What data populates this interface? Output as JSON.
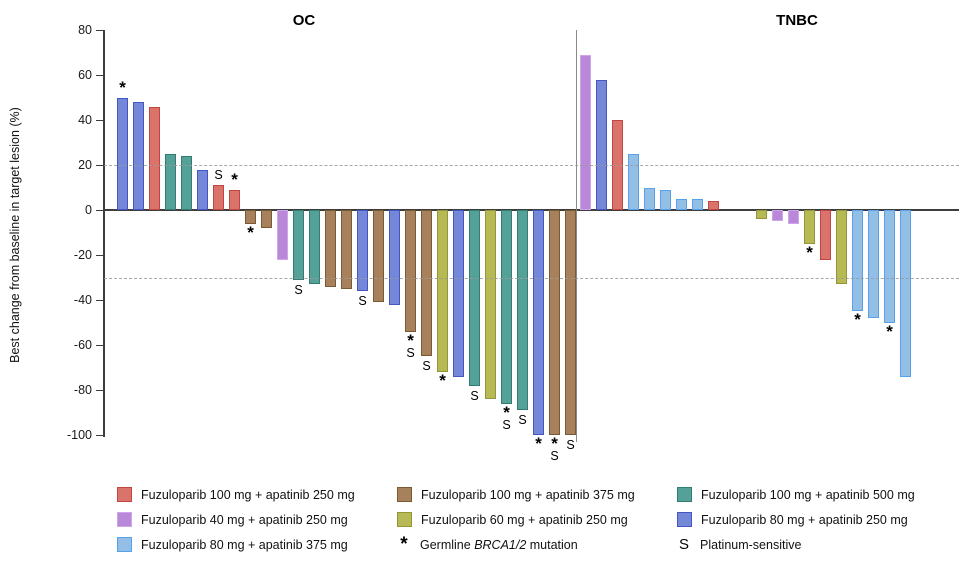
{
  "chart_data": {
    "type": "bar",
    "subtype": "waterfall",
    "ylabel": "Best change from baseline in target lesion (%)",
    "ylim": [
      -100,
      80
    ],
    "yticks": [
      80,
      60,
      40,
      20,
      0,
      -20,
      -40,
      -60,
      -80,
      -100
    ],
    "reference_lines": [
      20,
      -30
    ],
    "legend_position": "bottom",
    "grid": "off",
    "groups": [
      {
        "id": "red",
        "label": "Fuzuloparib 100 mg + apatinib 250 mg",
        "fill": "#D9736B",
        "border": "#C2463E"
      },
      {
        "id": "purple",
        "label": "Fuzuloparib 40 mg + apatinib 250 mg",
        "fill": "#BA88D9",
        "border": "#CFA5EA"
      },
      {
        "id": "lightblue",
        "label": "Fuzuloparib 80 mg + apatinib 375 mg",
        "fill": "#93BFE7",
        "border": "#57A1E9"
      },
      {
        "id": "brown",
        "label": "Fuzuloparib 100 mg + apatinib 375 mg",
        "fill": "#A6815B",
        "border": "#7A5A33"
      },
      {
        "id": "yellow",
        "label": "Fuzuloparib 60 mg + apatinib 250 mg",
        "fill": "#B7B955",
        "border": "#939638"
      },
      {
        "id": "teal",
        "label": "Fuzuloparib 100 mg + apatinib 500 mg",
        "fill": "#55A198",
        "border": "#2F7D75"
      },
      {
        "id": "blueviolet",
        "label": "Fuzuloparib 80 mg + apatinib 250 mg",
        "fill": "#7587D7",
        "border": "#4456C4"
      }
    ],
    "symbols": {
      "sym_star": {
        "glyph": "*",
        "label_pre": "Germline ",
        "label_italic": "BRCA1/2",
        "label_post": " mutation"
      },
      "sym_s": {
        "glyph": "S",
        "label_pre": "Platinum-sensitive",
        "label_italic": "",
        "label_post": ""
      }
    },
    "legend_columns": [
      [
        "red",
        "purple",
        "lightblue"
      ],
      [
        "brown",
        "yellow",
        "sym_star"
      ],
      [
        "teal",
        "blueviolet",
        "sym_s"
      ]
    ],
    "panels": [
      {
        "title": "OC",
        "bars": [
          {
            "slot": 0,
            "value": 50,
            "group": "blueviolet",
            "marks": "*"
          },
          {
            "slot": 1,
            "value": 48,
            "group": "blueviolet",
            "marks": ""
          },
          {
            "slot": 2,
            "value": 46,
            "group": "red",
            "marks": ""
          },
          {
            "slot": 3,
            "value": 25,
            "group": "teal",
            "marks": ""
          },
          {
            "slot": 4,
            "value": 24,
            "group": "teal",
            "marks": ""
          },
          {
            "slot": 5,
            "value": 18,
            "group": "blueviolet",
            "marks": ""
          },
          {
            "slot": 6,
            "value": 11,
            "group": "red",
            "marks": "S"
          },
          {
            "slot": 7,
            "value": 9,
            "group": "red",
            "marks": "*"
          },
          {
            "slot": 8,
            "value": -6,
            "group": "brown",
            "marks": "*"
          },
          {
            "slot": 9,
            "value": -8,
            "group": "brown",
            "marks": ""
          },
          {
            "slot": 10,
            "value": -22,
            "group": "purple",
            "marks": ""
          },
          {
            "slot": 11,
            "value": -31,
            "group": "teal",
            "marks": "S"
          },
          {
            "slot": 12,
            "value": -33,
            "group": "teal",
            "marks": ""
          },
          {
            "slot": 13,
            "value": -34,
            "group": "brown",
            "marks": ""
          },
          {
            "slot": 14,
            "value": -35,
            "group": "brown",
            "marks": ""
          },
          {
            "slot": 15,
            "value": -36,
            "group": "blueviolet",
            "marks": "S"
          },
          {
            "slot": 16,
            "value": -41,
            "group": "brown",
            "marks": ""
          },
          {
            "slot": 17,
            "value": -42,
            "group": "blueviolet",
            "marks": ""
          },
          {
            "slot": 18,
            "value": -54,
            "group": "brown",
            "marks": "*S"
          },
          {
            "slot": 19,
            "value": -65,
            "group": "brown",
            "marks": "S"
          },
          {
            "slot": 20,
            "value": -72,
            "group": "yellow",
            "marks": "*"
          },
          {
            "slot": 21,
            "value": -74,
            "group": "blueviolet",
            "marks": ""
          },
          {
            "slot": 22,
            "value": -78,
            "group": "teal",
            "marks": "S"
          },
          {
            "slot": 23,
            "value": -84,
            "group": "yellow",
            "marks": ""
          },
          {
            "slot": 24,
            "value": -86,
            "group": "teal",
            "marks": "*S"
          },
          {
            "slot": 25,
            "value": -89,
            "group": "teal",
            "marks": "S"
          },
          {
            "slot": 26,
            "value": -100,
            "group": "blueviolet",
            "marks": "*"
          },
          {
            "slot": 27,
            "value": -100,
            "group": "brown",
            "marks": "*S"
          },
          {
            "slot": 28,
            "value": -100,
            "group": "brown",
            "marks": "S"
          }
        ]
      },
      {
        "title": "TNBC",
        "bars": [
          {
            "slot": 0,
            "value": 69,
            "group": "purple",
            "marks": ""
          },
          {
            "slot": 1,
            "value": 58,
            "group": "blueviolet",
            "marks": ""
          },
          {
            "slot": 2,
            "value": 40,
            "group": "red",
            "marks": ""
          },
          {
            "slot": 3,
            "value": 25,
            "group": "lightblue",
            "marks": ""
          },
          {
            "slot": 4,
            "value": 10,
            "group": "lightblue",
            "marks": ""
          },
          {
            "slot": 5,
            "value": 9,
            "group": "lightblue",
            "marks": ""
          },
          {
            "slot": 6,
            "value": 5,
            "group": "lightblue",
            "marks": ""
          },
          {
            "slot": 7,
            "value": 5,
            "group": "lightblue",
            "marks": ""
          },
          {
            "slot": 8,
            "value": 4,
            "group": "red",
            "marks": ""
          },
          {
            "slot": 11,
            "value": -4,
            "group": "yellow",
            "marks": ""
          },
          {
            "slot": 12,
            "value": -5,
            "group": "purple",
            "marks": ""
          },
          {
            "slot": 13,
            "value": -6,
            "group": "purple",
            "marks": ""
          },
          {
            "slot": 14,
            "value": -15,
            "group": "yellow",
            "marks": "*"
          },
          {
            "slot": 15,
            "value": -22,
            "group": "red",
            "marks": ""
          },
          {
            "slot": 16,
            "value": -33,
            "group": "yellow",
            "marks": ""
          },
          {
            "slot": 17,
            "value": -45,
            "group": "lightblue",
            "marks": "*"
          },
          {
            "slot": 18,
            "value": -48,
            "group": "lightblue",
            "marks": ""
          },
          {
            "slot": 19,
            "value": -50,
            "group": "lightblue",
            "marks": "*"
          },
          {
            "slot": 20,
            "value": -74,
            "group": "lightblue",
            "marks": ""
          }
        ]
      }
    ]
  }
}
